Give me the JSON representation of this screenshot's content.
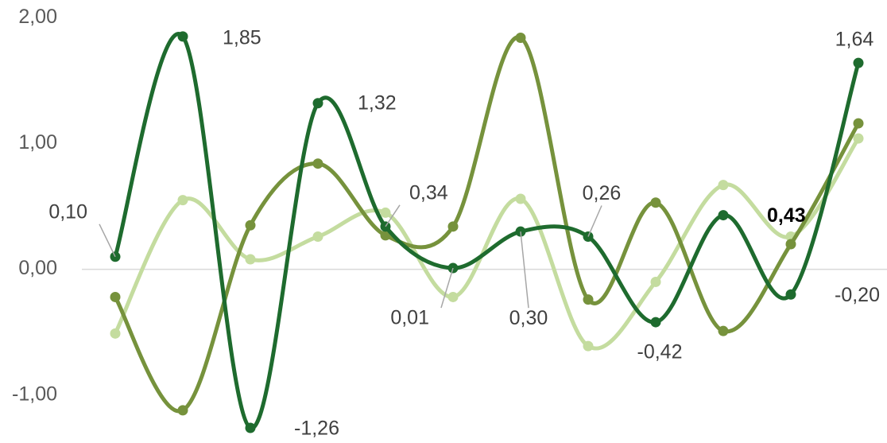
{
  "chart_data": {
    "type": "line",
    "categories": [
      null,
      null,
      null,
      null,
      null,
      null,
      null,
      null,
      null,
      null,
      null,
      null
    ],
    "ylim": [
      -1.38,
      2.14
    ],
    "yticks": [
      {
        "value": -1,
        "label": "-1,00"
      },
      {
        "value": 0,
        "label": "0,00"
      },
      {
        "value": 1,
        "label": "1,00"
      },
      {
        "value": 2,
        "label": "2,00"
      }
    ],
    "grid": false,
    "series": [
      {
        "color": "#c4dc9f",
        "values": [
          -0.51,
          0.55,
          0.08,
          0.26,
          0.45,
          -0.22,
          0.56,
          -0.61,
          -0.1,
          0.67,
          0.26,
          1.04
        ]
      },
      {
        "color": "#76923c",
        "values": [
          -0.22,
          -1.12,
          0.35,
          0.84,
          0.27,
          0.34,
          1.84,
          -0.24,
          0.53,
          -0.49,
          0.2,
          1.16
        ]
      },
      {
        "color": "#1e6b2e",
        "values": [
          0.1,
          1.85,
          -1.26,
          1.32,
          0.34,
          0.01,
          0.3,
          0.26,
          -0.42,
          0.43,
          -0.2,
          1.64
        ],
        "value_labels": [
          "0,10",
          "1,85",
          "-1,26",
          "1,32",
          "0,34",
          "0,01",
          "0,30",
          "0,26",
          "-0,42",
          "0,43",
          "-0,20",
          "1,64"
        ]
      }
    ]
  }
}
